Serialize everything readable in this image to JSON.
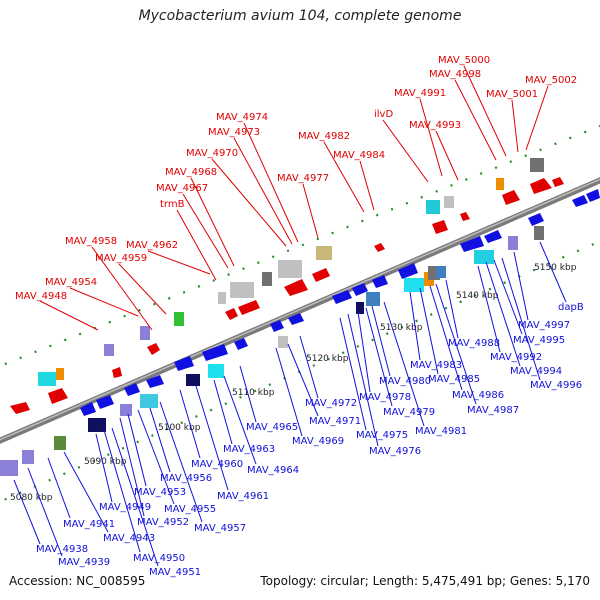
{
  "title": "Mycobacterium avium 104, complete genome",
  "accession": "Accession: NC_008595",
  "topology": "Topology: circular; Length: 5,475,491 bp; Genes: 5,170",
  "colors": {
    "forward_label": "#e00000",
    "reverse_label": "#1010d8",
    "backbone": "#808080",
    "tick": "#2a8a2a"
  },
  "kbp_labels": [
    "5080 kbp",
    "5090 kbp",
    "5100 kbp",
    "5110 kbp",
    "5120 kbp",
    "5130 kbp",
    "5140 kbp",
    "5150 kbp"
  ],
  "forward_genes": [
    "MAV_4948",
    "MAV_4954",
    "MAV_4958",
    "MAV_4959",
    "MAV_4962",
    "trmB",
    "MAV_4967",
    "MAV_4968",
    "MAV_4970",
    "MAV_4973",
    "MAV_4974",
    "MAV_4977",
    "MAV_4982",
    "MAV_4984",
    "ilvD",
    "MAV_4991",
    "MAV_4993",
    "MAV_4998",
    "MAV_5000",
    "MAV_5001",
    "MAV_5002"
  ],
  "reverse_genes": [
    "MAV_4938",
    "MAV_4939",
    "MAV_4941",
    "MAV_4943",
    "MAV_4949",
    "MAV_4950",
    "MAV_4951",
    "MAV_4952",
    "MAV_4953",
    "MAV_4955",
    "MAV_4956",
    "MAV_4957",
    "MAV_4960",
    "MAV_4961",
    "MAV_4963",
    "MAV_4964",
    "MAV_4965",
    "MAV_4969",
    "MAV_4971",
    "MAV_4972",
    "MAV_4975",
    "MAV_4976",
    "MAV_4978",
    "MAV_4979",
    "MAV_4980",
    "MAV_4981",
    "MAV_4983",
    "MAV_4985",
    "MAV_4986",
    "MAV_4987",
    "MAV_4988",
    "MAV_4992",
    "MAV_4994",
    "MAV_4995",
    "MAV_4996",
    "MAV_4997",
    "dapB"
  ]
}
